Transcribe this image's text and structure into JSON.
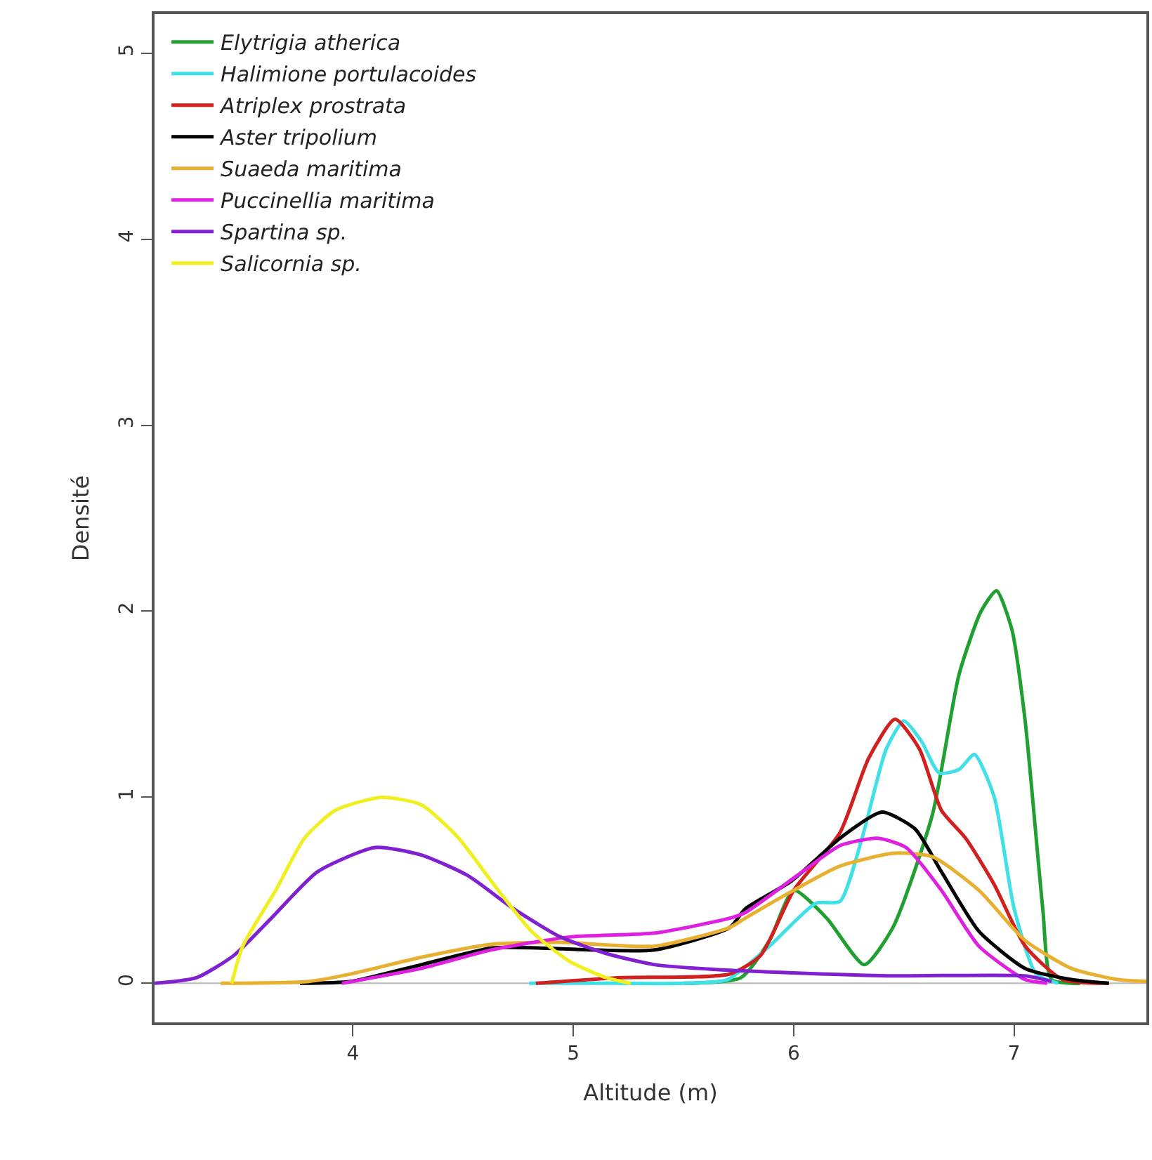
{
  "chart_data": {
    "type": "line",
    "xlabel": "Altitude (m)",
    "ylabel": "Densité",
    "xlim": [
      3.1,
      7.6
    ],
    "xticks": [
      4,
      5,
      6,
      7
    ],
    "ylim": [
      -0.21,
      5.21
    ],
    "yticks": [
      0,
      1,
      2,
      3,
      4,
      5
    ],
    "grid": false,
    "legend": "top left",
    "marker": "none",
    "line_style": "solid",
    "ref_lines": [
      {
        "axis": "y",
        "value": 0,
        "color": "#b8b8b8"
      }
    ],
    "series": [
      {
        "name": "Elytrigia atherica",
        "color": "#20a030",
        "x": [
          5.5,
          5.76,
          5.89,
          6.0,
          6.15,
          6.32,
          6.45,
          6.63,
          6.75,
          6.85,
          6.92,
          6.99,
          7.05,
          7.13,
          7.17,
          7.3
        ],
        "values": [
          0,
          0.03,
          0.23,
          0.5,
          0.35,
          0.1,
          0.3,
          0.91,
          1.66,
          2.0,
          2.11,
          1.9,
          1.41,
          0.4,
          0.02,
          0
        ]
      },
      {
        "name": "Halimione portulacoides",
        "color": "#40e0e8",
        "x": [
          4.8,
          5.2,
          5.5,
          5.7,
          5.89,
          6.1,
          6.21,
          6.31,
          6.42,
          6.5,
          6.58,
          6.66,
          6.75,
          6.82,
          6.91,
          7.0,
          7.1,
          7.2
        ],
        "values": [
          0,
          0,
          0,
          0.02,
          0.2,
          0.43,
          0.44,
          0.78,
          1.26,
          1.41,
          1.3,
          1.13,
          1.15,
          1.23,
          1.0,
          0.4,
          0.05,
          0
        ]
      },
      {
        "name": "Atriplex prostrata",
        "color": "#d02020",
        "x": [
          4.83,
          5.2,
          5.71,
          5.85,
          6.0,
          6.21,
          6.34,
          6.46,
          6.57,
          6.67,
          6.78,
          6.91,
          7.05,
          7.22,
          7.43
        ],
        "values": [
          0,
          0.03,
          0.05,
          0.15,
          0.5,
          0.81,
          1.21,
          1.42,
          1.26,
          0.93,
          0.78,
          0.53,
          0.2,
          0.02,
          0
        ]
      },
      {
        "name": "Aster tripolium",
        "color": "#000000",
        "x": [
          3.76,
          3.99,
          4.31,
          4.63,
          4.84,
          5.07,
          5.37,
          5.71,
          5.78,
          5.99,
          6.21,
          6.4,
          6.55,
          6.67,
          6.84,
          7.05,
          7.26,
          7.43
        ],
        "values": [
          0,
          0.01,
          0.1,
          0.19,
          0.19,
          0.18,
          0.18,
          0.3,
          0.4,
          0.55,
          0.78,
          0.92,
          0.83,
          0.6,
          0.28,
          0.08,
          0.02,
          0
        ]
      },
      {
        "name": "Suaeda maritima",
        "color": "#e8b030",
        "x": [
          3.4,
          3.8,
          3.99,
          4.31,
          4.63,
          4.94,
          5.37,
          5.71,
          5.78,
          6.0,
          6.21,
          6.46,
          6.63,
          6.84,
          7.05,
          7.26,
          7.47,
          7.6
        ],
        "values": [
          0,
          0.01,
          0.05,
          0.14,
          0.21,
          0.22,
          0.2,
          0.3,
          0.35,
          0.5,
          0.63,
          0.7,
          0.68,
          0.5,
          0.23,
          0.08,
          0.02,
          0.01
        ]
      },
      {
        "name": "Puccinellia maritima",
        "color": "#e020e0",
        "x": [
          3.95,
          4.31,
          4.63,
          4.99,
          5.37,
          5.71,
          5.78,
          6.04,
          6.21,
          6.38,
          6.51,
          6.67,
          6.84,
          7.05,
          7.15
        ],
        "values": [
          0,
          0.08,
          0.18,
          0.25,
          0.27,
          0.35,
          0.38,
          0.6,
          0.74,
          0.78,
          0.73,
          0.5,
          0.2,
          0.02,
          0
        ]
      },
      {
        "name": "Spartina sp.",
        "color": "#8020d0",
        "x": [
          3.1,
          3.29,
          3.46,
          3.63,
          3.84,
          4.1,
          4.31,
          4.52,
          4.73,
          4.94,
          5.15,
          5.37,
          5.71,
          6.42,
          7.05,
          7.17
        ],
        "values": [
          0,
          0.03,
          0.15,
          0.35,
          0.6,
          0.73,
          0.69,
          0.58,
          0.4,
          0.25,
          0.16,
          0.1,
          0.07,
          0.04,
          0.04,
          0.01
        ]
      },
      {
        "name": "Salicornia sp.",
        "color": "#f0f020",
        "x": [
          3.45,
          3.5,
          3.65,
          3.78,
          3.92,
          4.13,
          4.31,
          4.48,
          4.64,
          4.81,
          4.98,
          5.15,
          5.26
        ],
        "values": [
          0,
          0.2,
          0.5,
          0.78,
          0.93,
          1.0,
          0.96,
          0.78,
          0.53,
          0.28,
          0.12,
          0.03,
          0
        ]
      }
    ]
  }
}
